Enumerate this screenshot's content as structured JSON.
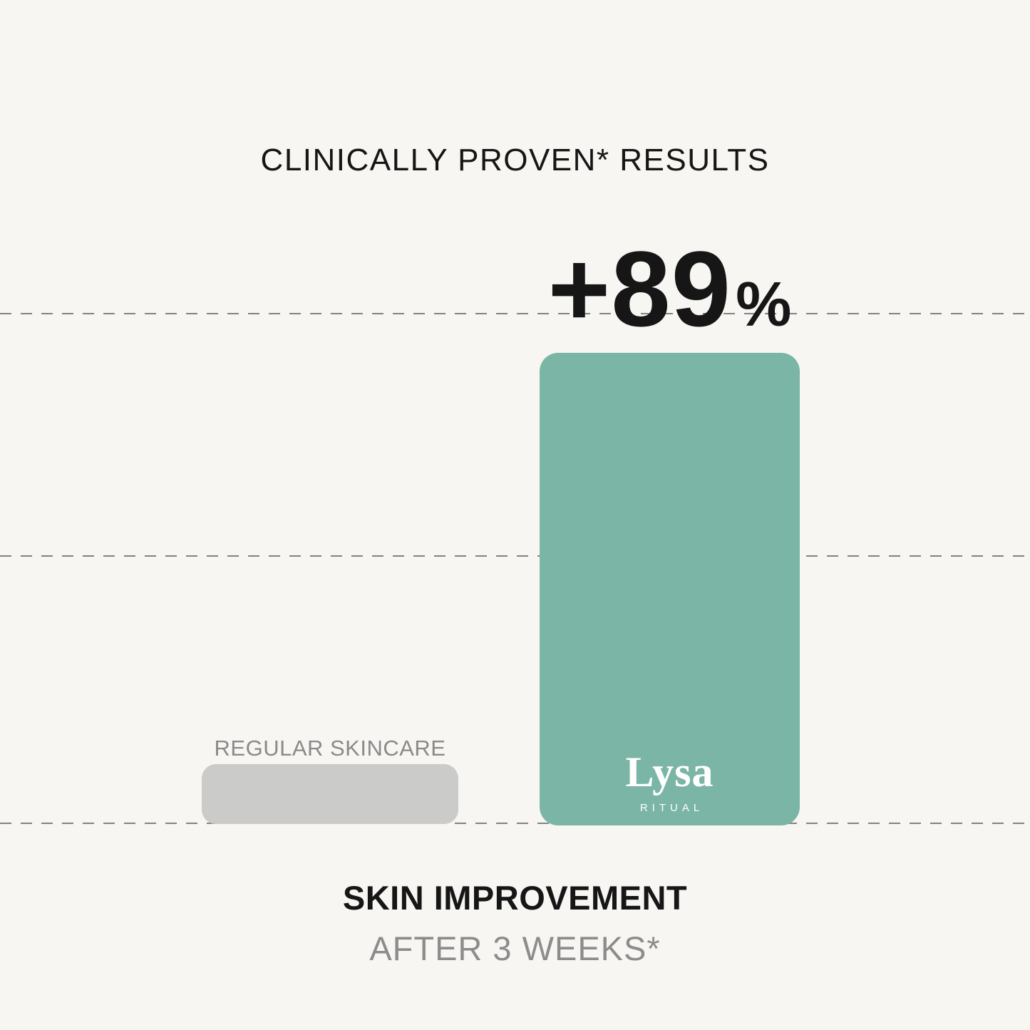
{
  "title": "CLINICALLY PROVEN* RESULTS",
  "colors": {
    "background": "#f7f6f3",
    "bar_regular": "#cbcbc9",
    "bar_lysa": "#7ab5a6",
    "text_primary": "#161616",
    "text_muted": "#8a8a8a",
    "gridline": "#5c5c5c",
    "brand_text": "#ffffff"
  },
  "annotation": {
    "value": "+89",
    "unit": "%"
  },
  "brand": {
    "name": "Lysa",
    "subtitle": "RITUAL"
  },
  "xlabel": {
    "main": "SKIN IMPROVEMENT",
    "sub": "AFTER 3 WEEKS*"
  },
  "chart_data": {
    "type": "bar",
    "title": "CLINICALLY PROVEN* RESULTS",
    "categories": [
      "REGULAR SKINCARE",
      "Lysa RITUAL"
    ],
    "values": [
      11,
      89
    ],
    "values_estimated": [
      true,
      false
    ],
    "value_labels": [
      "",
      "+89%"
    ],
    "bar_colors": [
      "#cbcbc9",
      "#7ab5a6"
    ],
    "xlabel": "SKIN IMPROVEMENT AFTER 3 WEEKS*",
    "ylabel": "",
    "ylim": [
      0,
      100
    ],
    "gridlines_y_approx": [
      0,
      50,
      95
    ],
    "grid": "horizontal dashed",
    "legend_position": "none"
  }
}
